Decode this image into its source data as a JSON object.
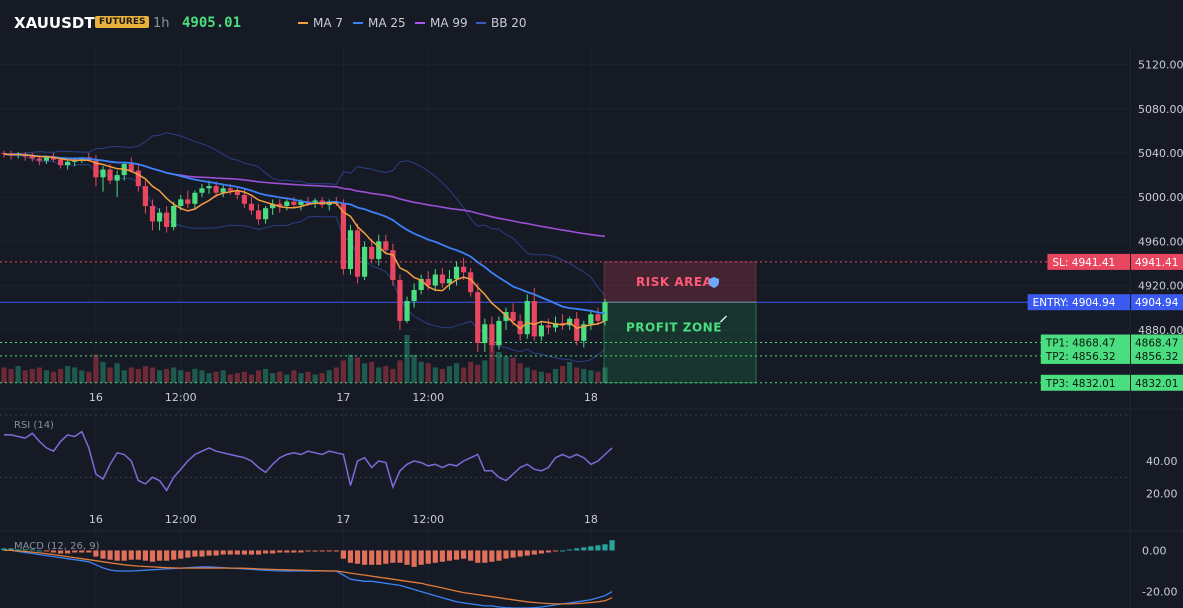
{
  "header": {
    "symbol": "XAUUSDT",
    "badge": "FUTURES",
    "timeframe": "1h",
    "price": "4905.01",
    "legend": [
      {
        "label": "MA 7",
        "color": "#f59e42"
      },
      {
        "label": "MA 25",
        "color": "#3b82f6"
      },
      {
        "label": "MA 99",
        "color": "#a855f7"
      },
      {
        "label": "BB 20",
        "color": "#3b5bbd"
      }
    ]
  },
  "colors": {
    "bull": "#4ade80",
    "bear": "#e8475f",
    "ma7": "#f59e42",
    "ma25": "#3b82f6",
    "ma99": "#9b4fd4",
    "bb": "#2c3f86",
    "rsi": "#7c6cd8",
    "macd_line": "#e07b39",
    "macd_signal": "#3b82f6",
    "grid": "#232736",
    "axis_text": "#c8ccd6"
  },
  "chart_data": [
    {
      "type": "candlestick",
      "x_ticks": [
        "16",
        "12:00",
        "17",
        "12:00",
        "18"
      ],
      "y_ticks": [
        5120.0,
        5080.0,
        5040.0,
        5000.0,
        4960.0,
        4920.0,
        4880.0
      ],
      "ylim": [
        4830,
        5135
      ],
      "candles": [
        {
          "o": 5040,
          "h": 5042,
          "l": 5036,
          "c": 5039
        },
        {
          "o": 5039,
          "h": 5042,
          "l": 5034,
          "c": 5038
        },
        {
          "o": 5038,
          "h": 5041,
          "l": 5035,
          "c": 5039
        },
        {
          "o": 5039,
          "h": 5041,
          "l": 5033,
          "c": 5037
        },
        {
          "o": 5037,
          "h": 5040,
          "l": 5032,
          "c": 5035
        },
        {
          "o": 5035,
          "h": 5038,
          "l": 5029,
          "c": 5033
        },
        {
          "o": 5033,
          "h": 5037,
          "l": 5030,
          "c": 5036
        },
        {
          "o": 5036,
          "h": 5040,
          "l": 5032,
          "c": 5034
        },
        {
          "o": 5034,
          "h": 5036,
          "l": 5026,
          "c": 5029
        },
        {
          "o": 5029,
          "h": 5033,
          "l": 5025,
          "c": 5032
        },
        {
          "o": 5032,
          "h": 5035,
          "l": 5028,
          "c": 5034
        },
        {
          "o": 5034,
          "h": 5036,
          "l": 5031,
          "c": 5036
        },
        {
          "o": 5036,
          "h": 5040,
          "l": 5032,
          "c": 5033
        },
        {
          "o": 5033,
          "h": 5038,
          "l": 5010,
          "c": 5018
        },
        {
          "o": 5018,
          "h": 5028,
          "l": 5005,
          "c": 5025
        },
        {
          "o": 5025,
          "h": 5030,
          "l": 5012,
          "c": 5015
        },
        {
          "o": 5015,
          "h": 5024,
          "l": 5000,
          "c": 5020
        },
        {
          "o": 5020,
          "h": 5031,
          "l": 5015,
          "c": 5030
        },
        {
          "o": 5030,
          "h": 5036,
          "l": 5022,
          "c": 5024
        },
        {
          "o": 5024,
          "h": 5030,
          "l": 5005,
          "c": 5010
        },
        {
          "o": 5010,
          "h": 5015,
          "l": 4985,
          "c": 4992
        },
        {
          "o": 4992,
          "h": 4998,
          "l": 4970,
          "c": 4978
        },
        {
          "o": 4978,
          "h": 4990,
          "l": 4970,
          "c": 4986
        },
        {
          "o": 4986,
          "h": 4992,
          "l": 4968,
          "c": 4973
        },
        {
          "o": 4973,
          "h": 4996,
          "l": 4970,
          "c": 4992
        },
        {
          "o": 4992,
          "h": 5002,
          "l": 4988,
          "c": 4998
        },
        {
          "o": 4998,
          "h": 5006,
          "l": 4990,
          "c": 4994
        },
        {
          "o": 4994,
          "h": 5006,
          "l": 4990,
          "c": 5004
        },
        {
          "o": 5004,
          "h": 5012,
          "l": 5000,
          "c": 5008
        },
        {
          "o": 5008,
          "h": 5015,
          "l": 5003,
          "c": 5010
        },
        {
          "o": 5010,
          "h": 5014,
          "l": 5000,
          "c": 5004
        },
        {
          "o": 5004,
          "h": 5012,
          "l": 5000,
          "c": 5008
        },
        {
          "o": 5008,
          "h": 5012,
          "l": 5002,
          "c": 5006
        },
        {
          "o": 5006,
          "h": 5010,
          "l": 4998,
          "c": 5002
        },
        {
          "o": 5002,
          "h": 5008,
          "l": 4990,
          "c": 4994
        },
        {
          "o": 4994,
          "h": 5000,
          "l": 4984,
          "c": 4988
        },
        {
          "o": 4988,
          "h": 4994,
          "l": 4975,
          "c": 4980
        },
        {
          "o": 4980,
          "h": 4992,
          "l": 4976,
          "c": 4990
        },
        {
          "o": 4990,
          "h": 4998,
          "l": 4984,
          "c": 4994
        },
        {
          "o": 4994,
          "h": 4998,
          "l": 4986,
          "c": 4992
        },
        {
          "o": 4992,
          "h": 4998,
          "l": 4988,
          "c": 4996
        },
        {
          "o": 4996,
          "h": 5000,
          "l": 4990,
          "c": 4993
        },
        {
          "o": 4993,
          "h": 4998,
          "l": 4988,
          "c": 4996
        },
        {
          "o": 4996,
          "h": 5000,
          "l": 4992,
          "c": 4994
        },
        {
          "o": 4994,
          "h": 4999,
          "l": 4990,
          "c": 4997
        },
        {
          "o": 4997,
          "h": 5000,
          "l": 4990,
          "c": 4993
        },
        {
          "o": 4993,
          "h": 4998,
          "l": 4988,
          "c": 4996
        },
        {
          "o": 4996,
          "h": 5000,
          "l": 4992,
          "c": 4994
        },
        {
          "o": 4994,
          "h": 4998,
          "l": 4930,
          "c": 4935
        },
        {
          "o": 4935,
          "h": 4975,
          "l": 4930,
          "c": 4970
        },
        {
          "o": 4970,
          "h": 4976,
          "l": 4922,
          "c": 4928
        },
        {
          "o": 4928,
          "h": 4960,
          "l": 4925,
          "c": 4955
        },
        {
          "o": 4955,
          "h": 4962,
          "l": 4940,
          "c": 4944
        },
        {
          "o": 4944,
          "h": 4966,
          "l": 4938,
          "c": 4960
        },
        {
          "o": 4960,
          "h": 4966,
          "l": 4950,
          "c": 4952
        },
        {
          "o": 4952,
          "h": 4958,
          "l": 4920,
          "c": 4925
        },
        {
          "o": 4925,
          "h": 4930,
          "l": 4880,
          "c": 4888
        },
        {
          "o": 4888,
          "h": 4910,
          "l": 4886,
          "c": 4906
        },
        {
          "o": 4906,
          "h": 4922,
          "l": 4900,
          "c": 4916
        },
        {
          "o": 4916,
          "h": 4930,
          "l": 4912,
          "c": 4926
        },
        {
          "o": 4926,
          "h": 4933,
          "l": 4916,
          "c": 4920
        },
        {
          "o": 4920,
          "h": 4935,
          "l": 4915,
          "c": 4930
        },
        {
          "o": 4930,
          "h": 4936,
          "l": 4918,
          "c": 4922
        },
        {
          "o": 4922,
          "h": 4934,
          "l": 4916,
          "c": 4926
        },
        {
          "o": 4926,
          "h": 4942,
          "l": 4920,
          "c": 4937
        },
        {
          "o": 4937,
          "h": 4945,
          "l": 4925,
          "c": 4932
        },
        {
          "o": 4932,
          "h": 4936,
          "l": 4910,
          "c": 4914
        },
        {
          "o": 4914,
          "h": 4922,
          "l": 4860,
          "c": 4868
        },
        {
          "o": 4868,
          "h": 4890,
          "l": 4860,
          "c": 4885
        },
        {
          "o": 4885,
          "h": 4892,
          "l": 4860,
          "c": 4866
        },
        {
          "o": 4866,
          "h": 4892,
          "l": 4862,
          "c": 4888
        },
        {
          "o": 4888,
          "h": 4900,
          "l": 4880,
          "c": 4896
        },
        {
          "o": 4896,
          "h": 4904,
          "l": 4884,
          "c": 4888
        },
        {
          "o": 4888,
          "h": 4894,
          "l": 4870,
          "c": 4876
        },
        {
          "o": 4876,
          "h": 4912,
          "l": 4872,
          "c": 4906
        },
        {
          "o": 4906,
          "h": 4918,
          "l": 4870,
          "c": 4874
        },
        {
          "o": 4874,
          "h": 4888,
          "l": 4870,
          "c": 4884
        },
        {
          "o": 4884,
          "h": 4890,
          "l": 4876,
          "c": 4882
        },
        {
          "o": 4882,
          "h": 4892,
          "l": 4878,
          "c": 4886
        },
        {
          "o": 4886,
          "h": 4894,
          "l": 4880,
          "c": 4884
        },
        {
          "o": 4884,
          "h": 4892,
          "l": 4880,
          "c": 4890
        },
        {
          "o": 4890,
          "h": 4896,
          "l": 4866,
          "c": 4870
        },
        {
          "o": 4870,
          "h": 4888,
          "l": 4864,
          "c": 4885
        },
        {
          "o": 4885,
          "h": 4898,
          "l": 4880,
          "c": 4894
        },
        {
          "o": 4894,
          "h": 4900,
          "l": 4884,
          "c": 4888
        },
        {
          "o": 4888,
          "h": 4908,
          "l": 4884,
          "c": 4905
        }
      ],
      "x_tick_index": [
        13,
        25,
        48,
        60,
        83
      ],
      "levels": [
        {
          "name": "SL",
          "value": 4941.41,
          "label": "SL: 4941.41",
          "price": "4941.41",
          "color": "#e8475f",
          "style": "dotted"
        },
        {
          "name": "ENTRY",
          "value": 4904.94,
          "label": "ENTRY: 4904.94",
          "price": "4904.94",
          "color": "#3b5bf0",
          "style": "solid"
        },
        {
          "name": "TP1",
          "value": 4868.47,
          "label": "TP1: 4868.47",
          "price": "4868.47",
          "color": "#4ade80",
          "style": "dotted"
        },
        {
          "name": "TP2",
          "value": 4856.32,
          "label": "TP2: 4856.32",
          "price": "4856.32",
          "color": "#4ade80",
          "style": "dotted"
        },
        {
          "name": "TP3",
          "value": 4832.01,
          "label": "TP3: 4832.01",
          "price": "4832.01",
          "color": "#4ade80",
          "style": "dotted"
        }
      ],
      "zones": {
        "risk_label": "RISK AREA",
        "profit_label": "PROFIT ZONE"
      },
      "volume": [
        22,
        20,
        24,
        18,
        20,
        22,
        18,
        16,
        20,
        24,
        22,
        18,
        16,
        40,
        30,
        22,
        28,
        18,
        22,
        20,
        24,
        22,
        18,
        20,
        22,
        18,
        16,
        20,
        18,
        14,
        16,
        18,
        12,
        14,
        16,
        12,
        18,
        20,
        14,
        16,
        12,
        18,
        14,
        16,
        12,
        14,
        18,
        22,
        32,
        40,
        36,
        28,
        30,
        22,
        24,
        20,
        32,
        68,
        40,
        30,
        28,
        22,
        20,
        24,
        28,
        22,
        30,
        26,
        32,
        60,
        44,
        38,
        36,
        28,
        22,
        18,
        16,
        14,
        20,
        24,
        30,
        22,
        20,
        18,
        16,
        22,
        18
      ]
    },
    {
      "type": "line",
      "name": "RSI (14)",
      "y_ticks": [
        40.0,
        20.0
      ],
      "ylim": [
        10,
        70
      ],
      "values": [
        56,
        56,
        55,
        54,
        57,
        52,
        48,
        46,
        52,
        56,
        55,
        58,
        48,
        32,
        29,
        38,
        45,
        44,
        40,
        28,
        26,
        30,
        28,
        22,
        30,
        35,
        40,
        44,
        46,
        48,
        46,
        45,
        44,
        43,
        42,
        40,
        36,
        33,
        38,
        42,
        44,
        45,
        44,
        46,
        45,
        44,
        46,
        45,
        44,
        25,
        40,
        42,
        36,
        40,
        39,
        24,
        34,
        38,
        40,
        39,
        37,
        38,
        36,
        38,
        37,
        40,
        42,
        44,
        34,
        34,
        30,
        28,
        32,
        36,
        38,
        35,
        34,
        36,
        42,
        44,
        42,
        44,
        42,
        38,
        40,
        44,
        48
      ]
    },
    {
      "type": "bar",
      "name": "MACD (12, 26, 9)",
      "y_ticks": [
        0.0,
        -20.0
      ],
      "ylim": [
        -28,
        8
      ],
      "hist": [
        1,
        1,
        0.5,
        0.5,
        0.5,
        0,
        -0.5,
        -1,
        -1.5,
        -1.5,
        -1,
        -1,
        -1,
        -3,
        -4,
        -4.5,
        -5,
        -5,
        -4.5,
        -4.5,
        -5,
        -5.5,
        -5,
        -5,
        -4.5,
        -4,
        -3.5,
        -3,
        -3,
        -2.5,
        -2.5,
        -2,
        -2,
        -2,
        -2,
        -2,
        -2,
        -1.5,
        -1.5,
        -1,
        -1,
        -1,
        -1,
        -0.5,
        -0.5,
        -0.5,
        -0.5,
        -0.5,
        -4,
        -6,
        -6.5,
        -7,
        -7,
        -7,
        -6.5,
        -6,
        -6,
        -7,
        -8,
        -7,
        -6.5,
        -6,
        -5.5,
        -5,
        -4.5,
        -4,
        -5,
        -6,
        -6,
        -5.5,
        -5,
        -4,
        -3.5,
        -3,
        -2.5,
        -2,
        -1.5,
        -1,
        -0.5,
        0,
        0.5,
        1,
        1.5,
        2,
        2.5,
        3,
        5
      ],
      "macd": [
        0,
        0,
        -0.5,
        -1,
        -1.5,
        -2,
        -2.5,
        -3,
        -3.5,
        -4,
        -4.5,
        -5,
        -5.5,
        -7,
        -8.5,
        -9.5,
        -10,
        -10,
        -10,
        -9.8,
        -9.6,
        -9.4,
        -9.2,
        -9,
        -8.8,
        -8.6,
        -8.4,
        -8.2,
        -8,
        -8,
        -8.2,
        -8.4,
        -8.6,
        -8.8,
        -9,
        -9.2,
        -9.4,
        -9.6,
        -9.8,
        -10,
        -10,
        -10,
        -10,
        -10,
        -10,
        -10,
        -10,
        -10,
        -12,
        -14,
        -14.5,
        -15,
        -15,
        -15.5,
        -16,
        -16.5,
        -17,
        -18,
        -19,
        -20,
        -21,
        -22,
        -23,
        -24,
        -25,
        -25.5,
        -26,
        -26.5,
        -27,
        -27,
        -27.5,
        -27.8,
        -28,
        -28,
        -28,
        -27.8,
        -27.5,
        -27,
        -26.5,
        -26,
        -25.5,
        -25,
        -24.5,
        -24,
        -23,
        -22,
        -20
      ],
      "signal": [
        0,
        0,
        -0.2,
        -0.5,
        -0.8,
        -1.2,
        -1.6,
        -2,
        -2.5,
        -3,
        -3.5,
        -4,
        -4.5,
        -5,
        -5.5,
        -6,
        -6.5,
        -7,
        -7.3,
        -7.6,
        -7.8,
        -8,
        -8.2,
        -8.4,
        -8.5,
        -8.6,
        -8.6,
        -8.6,
        -8.6,
        -8.6,
        -8.6,
        -8.6,
        -8.6,
        -8.6,
        -8.7,
        -8.8,
        -9,
        -9.1,
        -9.2,
        -9.3,
        -9.4,
        -9.5,
        -9.6,
        -9.7,
        -9.8,
        -9.9,
        -10,
        -10,
        -10.5,
        -11,
        -11.5,
        -12,
        -12.5,
        -13,
        -13.5,
        -14,
        -14.5,
        -15,
        -15.5,
        -16,
        -16.8,
        -17.5,
        -18.2,
        -19,
        -19.8,
        -20.5,
        -21,
        -21.5,
        -22,
        -22.5,
        -23,
        -23.5,
        -24,
        -24.5,
        -25,
        -25.3,
        -25.6,
        -25.8,
        -26,
        -26,
        -26,
        -25.8,
        -25.6,
        -25.3,
        -25,
        -24.5,
        -23
      ]
    }
  ]
}
